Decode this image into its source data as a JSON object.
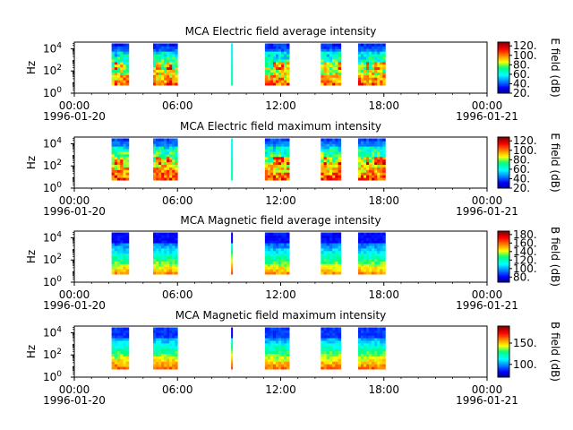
{
  "chart_data": [
    {
      "type": "heatmap",
      "title": "MCA  Electric field average intensity",
      "ylabel": "Hz",
      "y_scale": "log",
      "y_ticks": [
        {
          "base": "10",
          "exp": "0"
        },
        {
          "base": "10",
          "exp": "2"
        },
        {
          "base": "10",
          "exp": "4"
        }
      ],
      "x_range": [
        "1996-01-20 00:00",
        "1996-01-21 00:00"
      ],
      "x_ticks": [
        "00:00",
        "06:00",
        "12:00",
        "18:00",
        "00:00"
      ],
      "x_date_start": "1996-01-20",
      "x_date_end": "1996-01-21",
      "colorbar": {
        "label": "E field (dB)",
        "ticks": [
          "20.",
          "40.",
          "60.",
          "80.",
          "100.",
          "120."
        ],
        "range": [
          20,
          128
        ]
      },
      "data_segments": [
        {
          "start": "02:10",
          "end": "03:10"
        },
        {
          "start": "04:35",
          "end": "06:00"
        },
        {
          "start": "09:07",
          "end": "09:12"
        },
        {
          "start": "11:05",
          "end": "12:30"
        },
        {
          "start": "14:20",
          "end": "15:30"
        },
        {
          "start": "16:30",
          "end": "18:05"
        }
      ],
      "style": "electric"
    },
    {
      "type": "heatmap",
      "title": "MCA  Electric field maximum intensity",
      "ylabel": "Hz",
      "y_scale": "log",
      "y_ticks": [
        {
          "base": "10",
          "exp": "0"
        },
        {
          "base": "10",
          "exp": "2"
        },
        {
          "base": "10",
          "exp": "4"
        }
      ],
      "x_range": [
        "1996-01-20 00:00",
        "1996-01-21 00:00"
      ],
      "x_ticks": [
        "00:00",
        "06:00",
        "12:00",
        "18:00",
        "00:00"
      ],
      "x_date_start": "1996-01-20",
      "x_date_end": "1996-01-21",
      "colorbar": {
        "label": "E field (dB)",
        "ticks": [
          "20.",
          "40.",
          "60.",
          "80.",
          "100.",
          "120."
        ],
        "range": [
          20,
          128
        ]
      },
      "data_segments": [
        {
          "start": "02:10",
          "end": "03:10"
        },
        {
          "start": "04:35",
          "end": "06:00"
        },
        {
          "start": "09:07",
          "end": "09:12"
        },
        {
          "start": "11:05",
          "end": "12:30"
        },
        {
          "start": "14:20",
          "end": "15:30"
        },
        {
          "start": "16:30",
          "end": "18:05"
        }
      ],
      "style": "electric"
    },
    {
      "type": "heatmap",
      "title": "MCA  Magnetic field average intensity",
      "ylabel": "Hz",
      "y_scale": "log",
      "y_ticks": [
        {
          "base": "10",
          "exp": "0"
        },
        {
          "base": "10",
          "exp": "2"
        },
        {
          "base": "10",
          "exp": "4"
        }
      ],
      "x_range": [
        "1996-01-20 00:00",
        "1996-01-21 00:00"
      ],
      "x_ticks": [
        "00:00",
        "06:00",
        "12:00",
        "18:00",
        "00:00"
      ],
      "x_date_start": "1996-01-20",
      "x_date_end": "1996-01-21",
      "colorbar": {
        "label": "B field (dB)",
        "ticks": [
          "80.",
          "100.",
          "120.",
          "140.",
          "160.",
          "180."
        ],
        "range": [
          68,
          188
        ]
      },
      "data_segments": [
        {
          "start": "02:10",
          "end": "03:10"
        },
        {
          "start": "04:35",
          "end": "06:00"
        },
        {
          "start": "09:07",
          "end": "09:12"
        },
        {
          "start": "11:05",
          "end": "12:30"
        },
        {
          "start": "14:20",
          "end": "15:30"
        },
        {
          "start": "16:30",
          "end": "18:05"
        }
      ],
      "style": "magnetic"
    },
    {
      "type": "heatmap",
      "title": "MCA  Magnetic field maximum intensity",
      "ylabel": "Hz",
      "y_scale": "log",
      "y_ticks": [
        {
          "base": "10",
          "exp": "0"
        },
        {
          "base": "10",
          "exp": "2"
        },
        {
          "base": "10",
          "exp": "4"
        }
      ],
      "x_range": [
        "1996-01-20 00:00",
        "1996-01-21 00:00"
      ],
      "x_ticks": [
        "00:00",
        "06:00",
        "12:00",
        "18:00",
        "00:00"
      ],
      "x_date_start": "1996-01-20",
      "x_date_end": "1996-01-21",
      "colorbar": {
        "label": "B field (dB)",
        "ticks": [
          "100.",
          "150."
        ],
        "range": [
          70,
          190
        ]
      },
      "data_segments": [
        {
          "start": "02:10",
          "end": "03:10"
        },
        {
          "start": "04:35",
          "end": "06:00"
        },
        {
          "start": "09:07",
          "end": "09:12"
        },
        {
          "start": "11:05",
          "end": "12:30"
        },
        {
          "start": "14:20",
          "end": "15:30"
        },
        {
          "start": "16:30",
          "end": "18:05"
        }
      ],
      "style": "magnetic"
    }
  ]
}
